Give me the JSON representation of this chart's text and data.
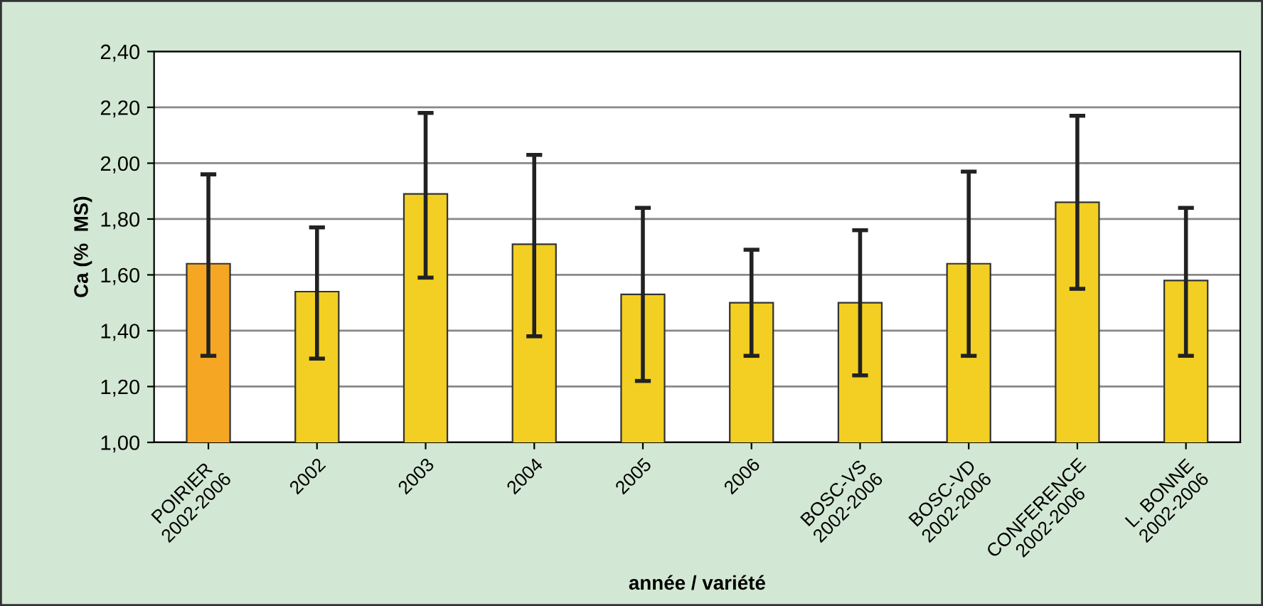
{
  "chart_data": {
    "type": "bar",
    "xlabel": "année / variété",
    "ylabel": "Ca (%  MS)",
    "categories": [
      "POIRIER\n2002-2006",
      "2002",
      "2003",
      "2004",
      "2005",
      "2006",
      "BOSC-VS\n2002-2006",
      "BOSC-VD\n2002-2006",
      "CONFERENCE\n2002-2006",
      "L. BONNE\n2002-2006"
    ],
    "values": [
      1.64,
      1.54,
      1.89,
      1.71,
      1.53,
      1.5,
      1.5,
      1.64,
      1.86,
      1.58
    ],
    "colors": [
      "#f5a623",
      "#f2cf22",
      "#f2cf22",
      "#f2cf22",
      "#f2cf22",
      "#f2cf22",
      "#f2cf22",
      "#f2cf22",
      "#f2cf22",
      "#f2cf22"
    ],
    "errors": [
      [
        1.31,
        1.96
      ],
      [
        1.3,
        1.77
      ],
      [
        1.59,
        2.18
      ],
      [
        1.38,
        2.03
      ],
      [
        1.22,
        1.84
      ],
      [
        1.31,
        1.69
      ],
      [
        1.24,
        1.76
      ],
      [
        1.31,
        1.97
      ],
      [
        1.55,
        2.17
      ],
      [
        1.31,
        1.84
      ]
    ],
    "ylim": [
      1.0,
      2.4
    ],
    "yticks": [
      {
        "value": 1.0,
        "label": "1,00"
      },
      {
        "value": 1.2,
        "label": "1,20"
      },
      {
        "value": 1.4,
        "label": "1,40"
      },
      {
        "value": 1.6,
        "label": "1,60"
      },
      {
        "value": 1.8,
        "label": "1,80"
      },
      {
        "value": 2.0,
        "label": "2,00"
      },
      {
        "value": 2.2,
        "label": "2,20"
      },
      {
        "value": 2.4,
        "label": "2,40"
      }
    ],
    "grid": "y",
    "legend": false
  }
}
